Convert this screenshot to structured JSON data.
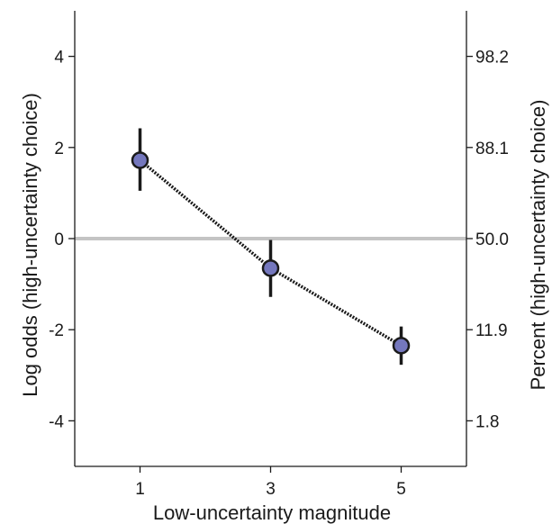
{
  "chart_data": {
    "type": "line",
    "xlabel": "Low-uncertainty magnitude",
    "ylabel_left": "Log odds (high-uncertainty choice)",
    "ylabel_right": "Percent (high-uncertainty choice)",
    "x_ticks": [
      "1",
      "3",
      "5"
    ],
    "x_tick_values": [
      1,
      3,
      5
    ],
    "xlim": [
      0,
      6
    ],
    "y_ticks_left": [
      "4",
      "2",
      "0",
      "-2",
      "-4"
    ],
    "y_tick_values_left": [
      4,
      2,
      0,
      -2,
      -4
    ],
    "y_ticks_right": [
      "98.2",
      "88.1",
      "50.0",
      "11.9",
      "1.8"
    ],
    "y_tick_values_right": [
      4,
      2,
      0,
      -2,
      -4
    ],
    "ylim": [
      -5,
      5
    ],
    "reference_line_y": 0,
    "series": [
      {
        "x": [
          1,
          3,
          5
        ],
        "y": [
          1.72,
          -0.65,
          -2.35
        ],
        "err_low": [
          1.05,
          -1.28,
          -2.77
        ],
        "err_high": [
          2.42,
          -0.03,
          -1.93
        ]
      }
    ],
    "colors": {
      "marker_fill": "#7477bd",
      "marker_edge": "#1a1a1a",
      "line": "#1a1a1a",
      "reference_line": "#c4c4c4",
      "axis": "#1a1a1a"
    },
    "grid": false,
    "legend": "none"
  }
}
